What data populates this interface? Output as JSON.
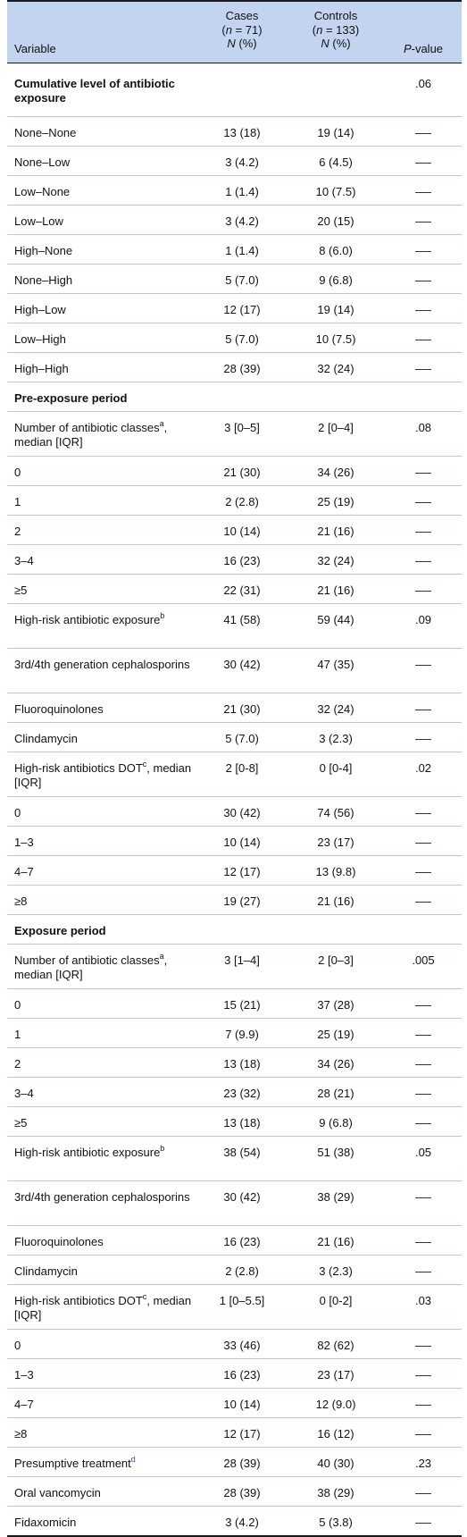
{
  "header": {
    "variable": "Variable",
    "cases_line1": "Cases",
    "cases_n_label": "n",
    "cases_n_value": " = 71)",
    "ctrl_line1": "Controls",
    "ctrl_n_label": "n",
    "ctrl_n_value": " = 133)",
    "col_stat_n": "N",
    "col_stat_pct": " (%)",
    "pvalue_p": "P",
    "pvalue_rest": "-value",
    "dash_symbol": "—"
  },
  "rows": [
    {
      "label": "Cumulative level of antibiotic exposure",
      "section": true,
      "pvalue": ".06",
      "h": 60
    },
    {
      "label": "None–None",
      "cases": "13 (18)",
      "controls": "19 (14)",
      "dash": true,
      "h": 33
    },
    {
      "label": "None–Low",
      "cases": "3 (4.2)",
      "controls": "6 (4.5)",
      "dash": true,
      "h": 33
    },
    {
      "label": "Low–None",
      "cases": "1 (1.4)",
      "controls": "10 (7.5)",
      "dash": true,
      "h": 33
    },
    {
      "label": "Low–Low",
      "cases": "3 (4.2)",
      "controls": "20 (15)",
      "dash": true,
      "h": 33
    },
    {
      "label": "High–None",
      "cases": "1 (1.4)",
      "controls": "8 (6.0)",
      "dash": true,
      "h": 33
    },
    {
      "label": "None–High",
      "cases": "5 (7.0)",
      "controls": "9 (6.8)",
      "dash": true,
      "h": 33
    },
    {
      "label": "High–Low",
      "cases": "12 (17)",
      "controls": "19 (14)",
      "dash": true,
      "h": 33
    },
    {
      "label": "Low–High",
      "cases": "5 (7.0)",
      "controls": "10 (7.5)",
      "dash": true,
      "h": 33
    },
    {
      "label": "High–High",
      "cases": "28 (39)",
      "controls": "32 (24)",
      "dash": true,
      "h": 33
    },
    {
      "label": "Pre-exposure period",
      "section": true,
      "h": 33
    },
    {
      "label": "Number of antibiotic classes",
      "sup": "a",
      "label2": ", median [IQR]",
      "cases": "3 [0–5]",
      "controls": "2 [0–4]",
      "pvalue": ".08",
      "h": 50
    },
    {
      "label": "0",
      "cases": "21 (30)",
      "controls": "34 (26)",
      "dash": true,
      "h": 33
    },
    {
      "label": "1",
      "cases": "2 (2.8)",
      "controls": "25 (19)",
      "dash": true,
      "h": 33
    },
    {
      "label": "2",
      "cases": "10 (14)",
      "controls": "21 (16)",
      "dash": true,
      "h": 33
    },
    {
      "label": "3–4",
      "cases": "16 (23)",
      "controls": "32 (24)",
      "dash": true,
      "h": 33
    },
    {
      "label": "≥5",
      "cases": "22 (31)",
      "controls": "21 (16)",
      "dash": true,
      "h": 33
    },
    {
      "label": "High-risk antibiotic exposure",
      "sup": "b",
      "label2": "",
      "cases": "41 (58)",
      "controls": "59 (44)",
      "pvalue": ".09",
      "h": 50
    },
    {
      "label": "3rd/4th generation cephalosporins",
      "cases": "30 (42)",
      "controls": "47 (35)",
      "dash": true,
      "h": 50
    },
    {
      "label": "Fluoroquinolones",
      "cases": "21 (30)",
      "controls": "32 (24)",
      "dash": true,
      "h": 33
    },
    {
      "label": "Clindamycin",
      "cases": "5 (7.0)",
      "controls": "3 (2.3)",
      "dash": true,
      "h": 33
    },
    {
      "label": "High-risk antibiotics DOT",
      "sup": "c",
      "label2": ", median [IQR]",
      "cases": "2 [0-8]",
      "controls": "0 [0-4]",
      "pvalue": ".02",
      "h": 50
    },
    {
      "label": "0",
      "cases": "30 (42)",
      "controls": "74 (56)",
      "dash": true,
      "h": 33
    },
    {
      "label": "1–3",
      "cases": "10 (14)",
      "controls": "23 (17)",
      "dash": true,
      "h": 33
    },
    {
      "label": "4–7",
      "cases": "12 (17)",
      "controls": "13 (9.8)",
      "dash": true,
      "h": 33
    },
    {
      "label": "≥8",
      "cases": "19 (27)",
      "controls": "21 (16)",
      "dash": true,
      "h": 33
    },
    {
      "label": "Exposure period",
      "section": true,
      "h": 33
    },
    {
      "label": "Number of antibiotic classes",
      "sup": "a",
      "label2": ", median [IQR]",
      "cases": "3 [1–4]",
      "controls": "2 [0–3]",
      "pvalue": ".005",
      "h": 50
    },
    {
      "label": "0",
      "cases": "15 (21)",
      "controls": "37 (28)",
      "dash": true,
      "h": 33
    },
    {
      "label": "1",
      "cases": "7 (9.9)",
      "controls": "25 (19)",
      "dash": true,
      "h": 33
    },
    {
      "label": "2",
      "cases": "13 (18)",
      "controls": "34 (26)",
      "dash": true,
      "h": 33
    },
    {
      "label": "3–4",
      "cases": "23 (32)",
      "controls": "28 (21)",
      "dash": true,
      "h": 33
    },
    {
      "label": "≥5",
      "cases": "13 (18)",
      "controls": "9 (6.8)",
      "dash": true,
      "h": 33
    },
    {
      "label": "High-risk antibiotic exposure",
      "sup": "b",
      "label2": "",
      "cases": "38 (54)",
      "controls": "51 (38)",
      "pvalue": ".05",
      "h": 50
    },
    {
      "label": "3rd/4th generation cephalosporins",
      "cases": "30 (42)",
      "controls": "38 (29)",
      "dash": true,
      "h": 50
    },
    {
      "label": "Fluoroquinolones",
      "cases": "16 (23)",
      "controls": "21 (16)",
      "dash": true,
      "h": 33
    },
    {
      "label": "Clindamycin",
      "cases": "2 (2.8)",
      "controls": "3 (2.3)",
      "dash": true,
      "h": 33
    },
    {
      "label": "High-risk antibiotics DOT",
      "sup": "c",
      "label2": ", median [IQR]",
      "cases": "1 [0–5.5]",
      "controls": "0 [0-2]",
      "pvalue": ".03",
      "h": 50
    },
    {
      "label": "0",
      "cases": "33 (46)",
      "controls": "82 (62)",
      "dash": true,
      "h": 33
    },
    {
      "label": "1–3",
      "cases": "16 (23)",
      "controls": "23 (17)",
      "dash": true,
      "h": 33
    },
    {
      "label": "4–7",
      "cases": "10 (14)",
      "controls": "12 (9.0)",
      "dash": true,
      "h": 33
    },
    {
      "label": "≥8",
      "cases": "12 (17)",
      "controls": "16 (12)",
      "dash": true,
      "h": 33
    },
    {
      "label": "Presumptive treatment",
      "sup": "d",
      "supBlue": true,
      "label2": "",
      "cases": "28 (39)",
      "controls": "40 (30)",
      "pvalue": ".23",
      "h": 33
    },
    {
      "label": "Oral vancomycin",
      "cases": "28 (39)",
      "controls": "38 (29)",
      "dash": true,
      "h": 33
    },
    {
      "label": "Fidaxomicin",
      "cases": "3 (4.2)",
      "controls": "5 (3.8)",
      "dash": true,
      "h": 33
    }
  ]
}
